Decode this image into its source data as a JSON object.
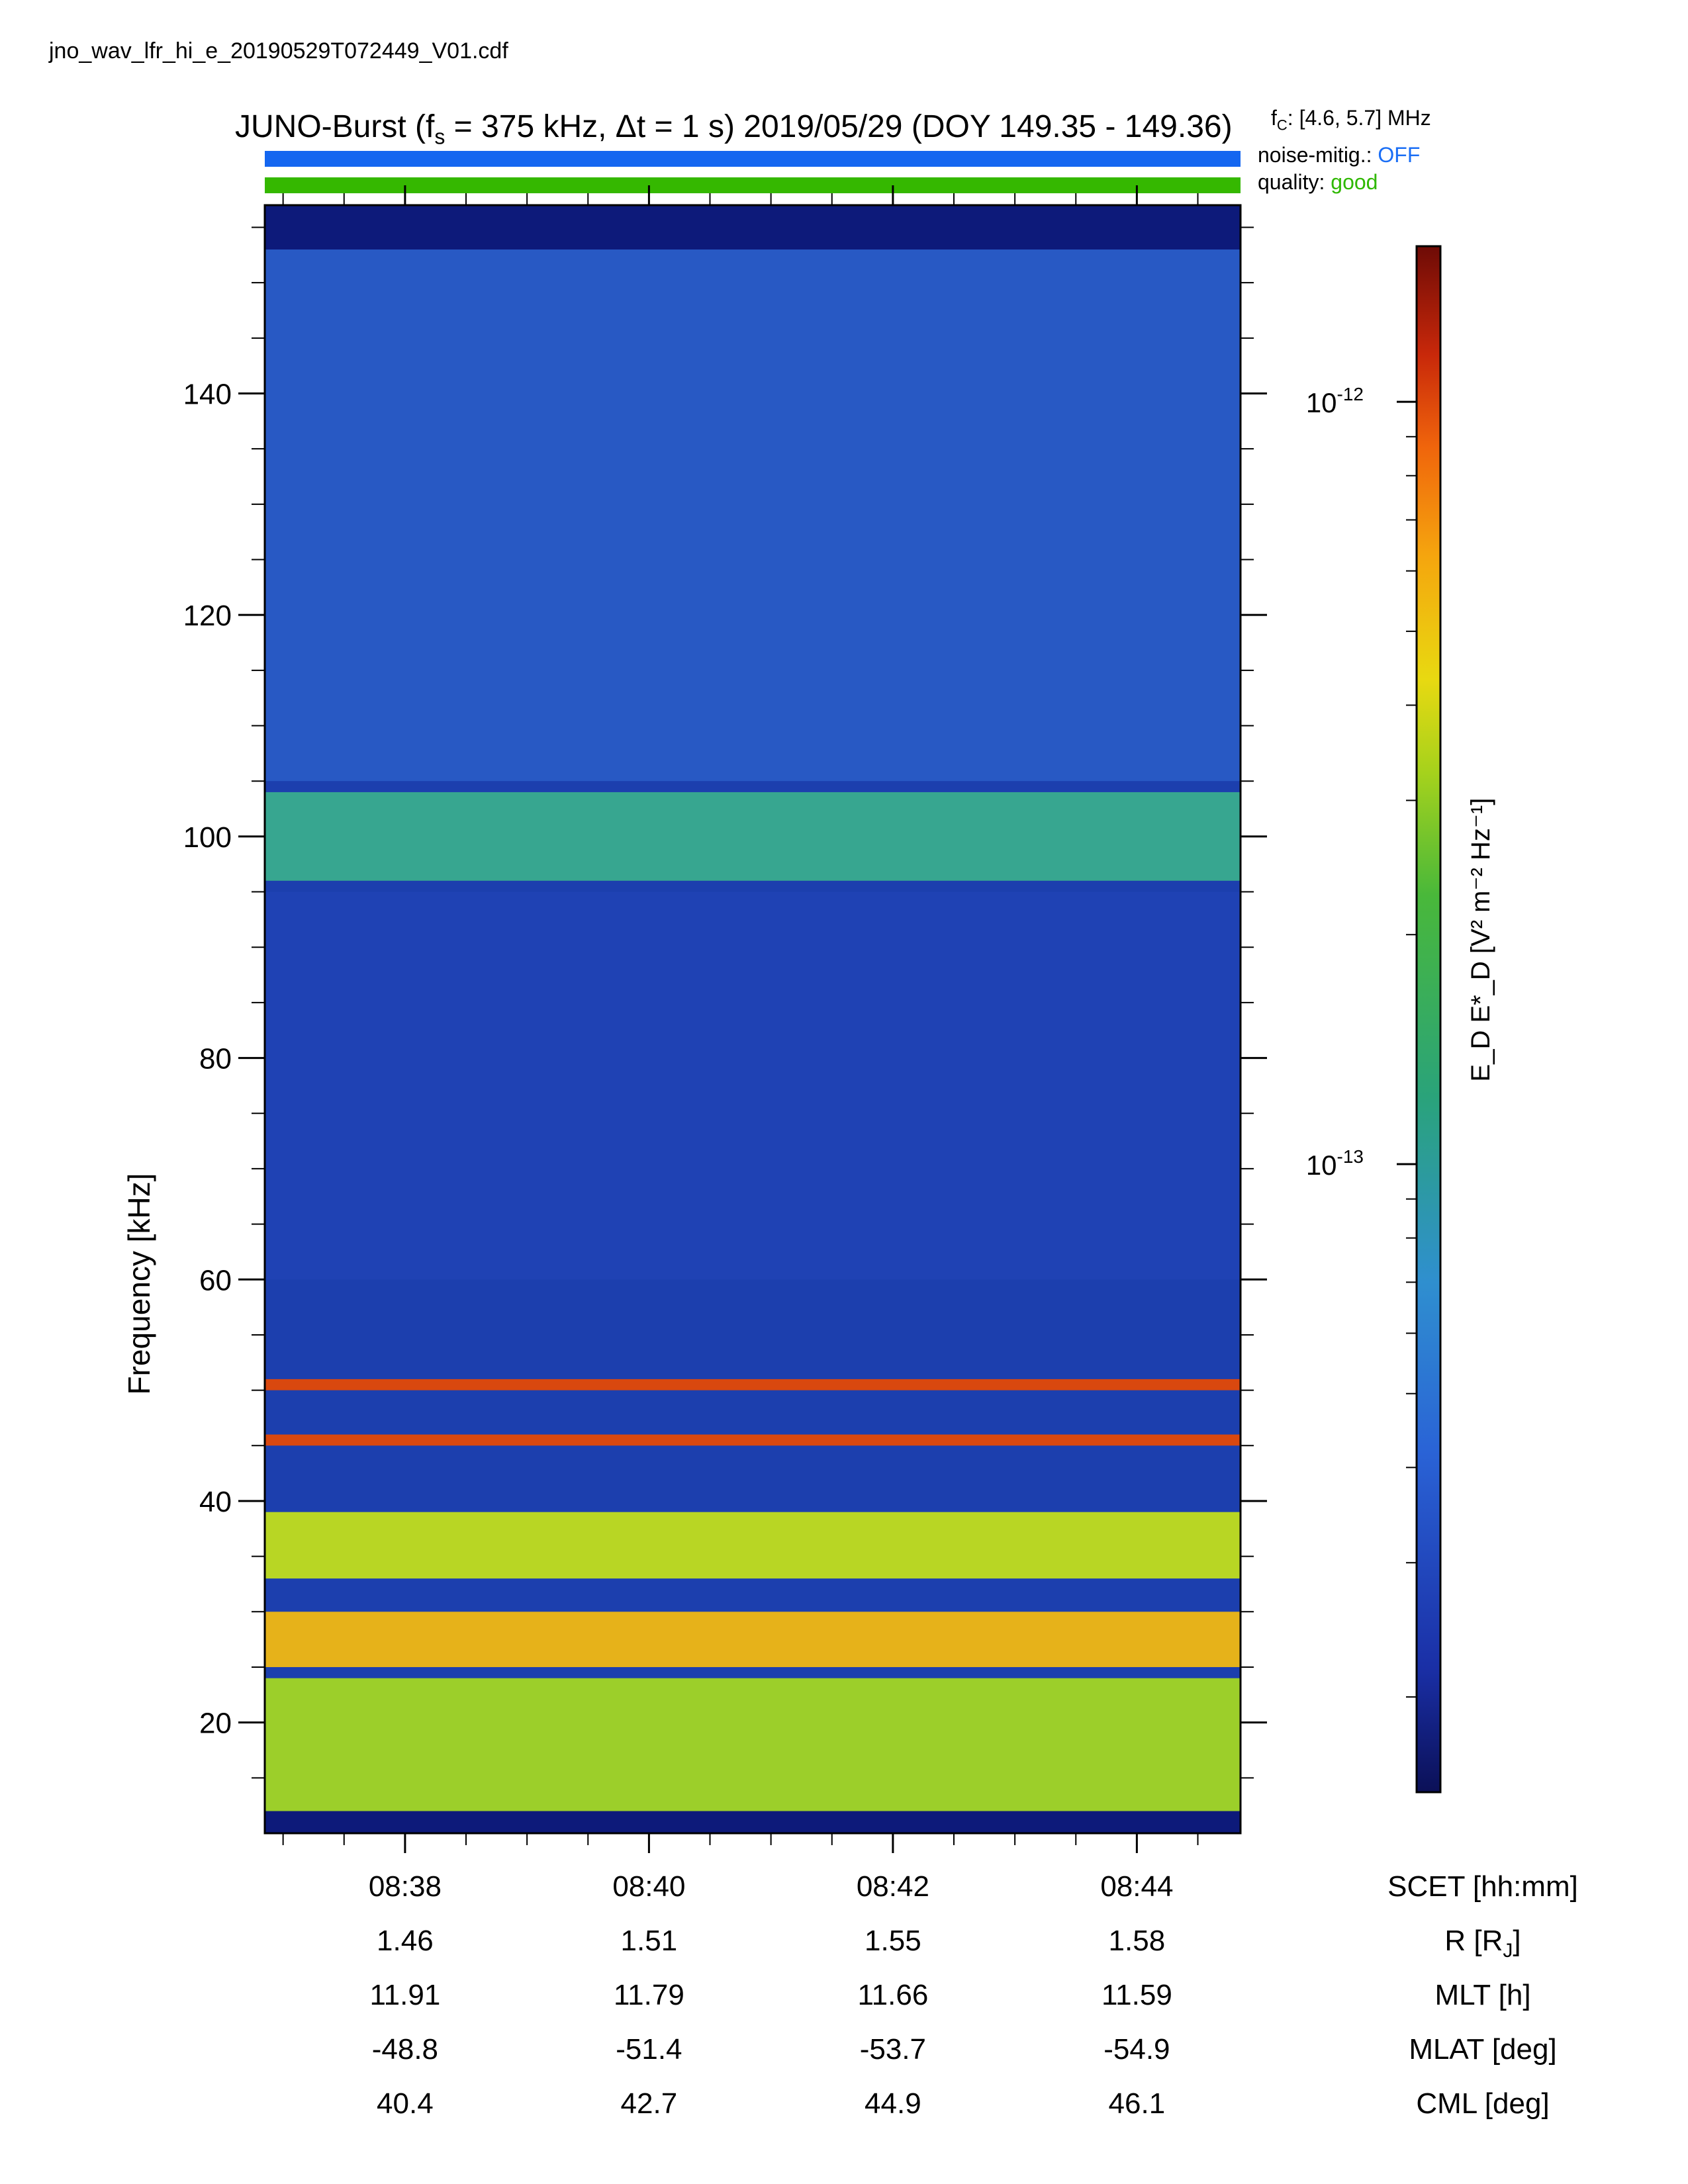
{
  "filename": "jno_wav_lfr_hi_e_20190529T072449_V01.cdf",
  "title": {
    "prefix": "JUNO-Burst (f",
    "fs_sub": "s",
    "mid": " = 375 kHz, Δt = 1 s)  2019/05/29 (DOY 149.35 - 149.36)"
  },
  "fc": {
    "symbol": "f",
    "sub": "C",
    "value": ": [4.6, 5.7] MHz"
  },
  "flags": {
    "noise_label": "noise-mitig.:",
    "noise_value": "OFF",
    "noise_color": "#1a6ef5",
    "quality_label": "quality:",
    "quality_value": "good",
    "quality_color": "#2fb800"
  },
  "colors": {
    "blue_bar": "#1466f0",
    "green_bar": "#35b800"
  },
  "chart_data": {
    "type": "heatmap",
    "ylabel": "Frequency [kHz]",
    "ylim": [
      10,
      157
    ],
    "yticks": [
      20,
      40,
      60,
      80,
      100,
      120,
      140
    ],
    "x_ticks": [
      "08:38",
      "08:40",
      "08:42",
      "08:44"
    ],
    "x_tick_minutes": [
      0,
      2,
      4,
      6
    ],
    "xlim_minutes": [
      -1.15,
      6.85
    ],
    "colorbar": {
      "label": "E_D E*_D [V² m⁻² Hz⁻¹]",
      "scale": "log",
      "range": [
        1.5e-14,
        1.6e-12
      ],
      "ticks": [
        {
          "value": 1e-12,
          "mantissa": "10",
          "exp": "-12"
        },
        {
          "value": 1e-13,
          "mantissa": "10",
          "exp": "-13"
        }
      ]
    },
    "bands": [
      {
        "kHz": [
          10,
          12
        ],
        "intensity": "very low"
      },
      {
        "kHz": [
          12,
          24
        ],
        "intensity": "high (yellow/green with orange)"
      },
      {
        "kHz": [
          25,
          30
        ],
        "intensity": "high (orange/red lines)"
      },
      {
        "kHz": [
          33,
          39
        ],
        "intensity": "high (yellow/orange)"
      },
      {
        "kHz": [
          45,
          46
        ],
        "intensity": "very high (red line)"
      },
      {
        "kHz": [
          50,
          51
        ],
        "intensity": "very high (red line)"
      },
      {
        "kHz": [
          60,
          95
        ],
        "intensity": "low (blue)"
      },
      {
        "kHz": [
          96,
          104
        ],
        "intensity": "moderate (green)"
      },
      {
        "kHz": [
          105,
          153
        ],
        "intensity": "low-moderate (blue/green)"
      },
      {
        "kHz": [
          153,
          157
        ],
        "intensity": "very low"
      }
    ]
  },
  "ephemeris": {
    "rows": [
      {
        "label": "SCET [hh:mm]",
        "values": [
          "08:38",
          "08:40",
          "08:42",
          "08:44"
        ]
      },
      {
        "label": "R [R",
        "label_sub": "J",
        "label_end": "]",
        "values": [
          "1.46",
          "1.51",
          "1.55",
          "1.58"
        ]
      },
      {
        "label": "MLT [h]",
        "values": [
          "11.91",
          "11.79",
          "11.66",
          "11.59"
        ]
      },
      {
        "label": "MLAT [deg]",
        "values": [
          "-48.8",
          "-51.4",
          "-53.7",
          "-54.9"
        ]
      },
      {
        "label": "CML [deg]",
        "values": [
          "40.4",
          "42.7",
          "44.9",
          "46.1"
        ]
      }
    ]
  }
}
